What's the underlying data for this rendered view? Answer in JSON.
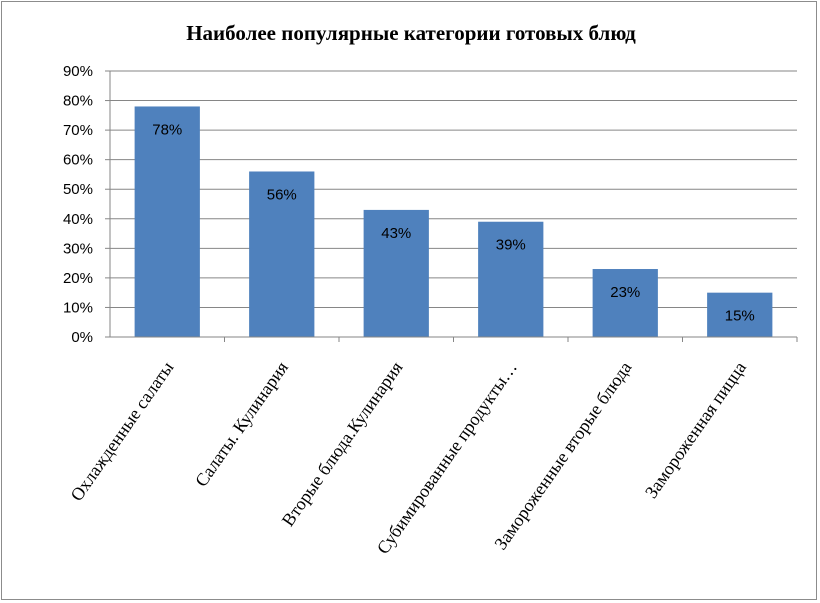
{
  "chart_data": {
    "type": "bar",
    "title": "Наиболее популярные категории готовых блюд",
    "categories": [
      "Охлажденные салаты",
      "Салаты. Кулинария",
      "Вторые блюда.Кулинария",
      "Субимированные продукты…",
      "Замороженные вторые блюда",
      "Замороженная пицца"
    ],
    "values": [
      78,
      56,
      43,
      39,
      23,
      15
    ],
    "data_labels": [
      "78%",
      "56%",
      "43%",
      "39%",
      "23%",
      "15%"
    ],
    "ylim": [
      0,
      90
    ],
    "yticks": [
      "0%",
      "10%",
      "20%",
      "30%",
      "40%",
      "50%",
      "60%",
      "70%",
      "80%",
      "90%"
    ],
    "grid": true,
    "legend": "none",
    "bar_color": "#4f81bd"
  }
}
